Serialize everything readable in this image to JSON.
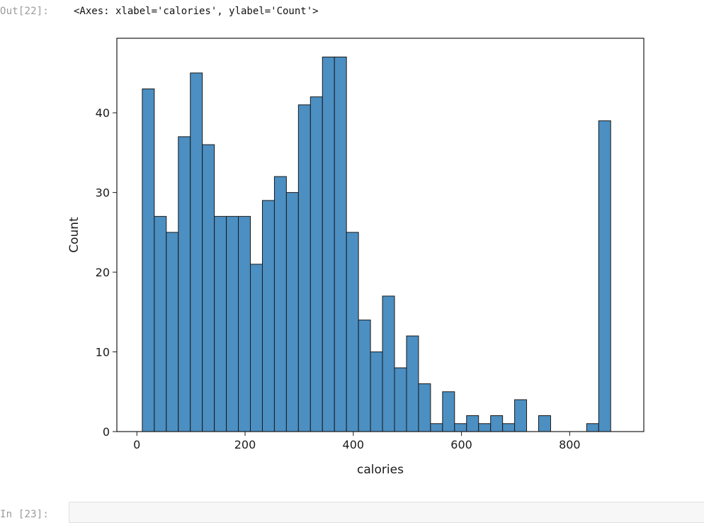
{
  "cell_output": {
    "out_prompt": "Out[22]:",
    "repr_text": "<Axes: xlabel='calories', ylabel='Count'>"
  },
  "next_cell": {
    "in_prompt": "In [23]:"
  },
  "chart_data": {
    "type": "bar",
    "title": "",
    "xlabel": "calories",
    "ylabel": "Count",
    "xlim": [
      -37,
      937
    ],
    "ylim": [
      0,
      49.35
    ],
    "xticks": [
      0,
      200,
      400,
      600,
      800
    ],
    "yticks": [
      0,
      10,
      20,
      30,
      40
    ],
    "bar_color": "#4c8fc2",
    "edge_color": "#1a1a1a",
    "bin_width": 22.2,
    "bin_start": 10,
    "values": [
      43,
      27,
      25,
      37,
      45,
      36,
      27,
      27,
      27,
      21,
      29,
      32,
      30,
      41,
      42,
      47,
      47,
      25,
      14,
      10,
      17,
      8,
      12,
      6,
      1,
      5,
      1,
      2,
      1,
      2,
      1,
      4,
      0,
      2,
      0,
      0,
      0,
      1,
      39
    ],
    "grid": false,
    "legend": "none"
  }
}
